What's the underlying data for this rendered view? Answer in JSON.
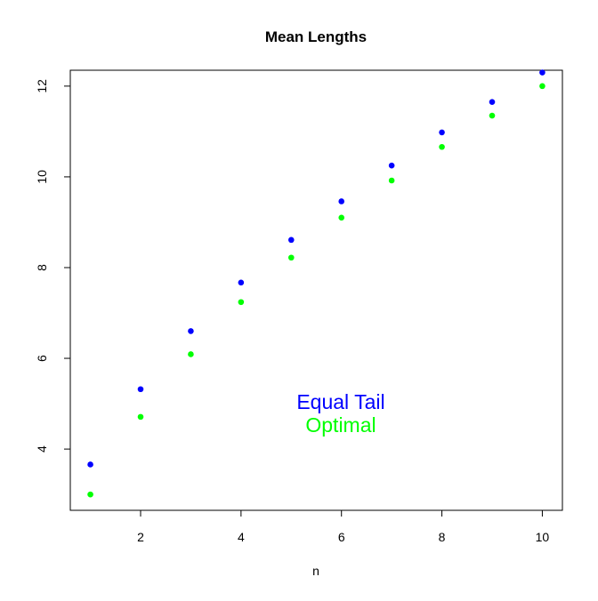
{
  "chart_data": {
    "type": "scatter",
    "title": "Mean Lengths",
    "xlabel": "n",
    "ylabel": "",
    "xlim": [
      0.6,
      10.4
    ],
    "ylim": [
      2.65,
      12.35
    ],
    "x_ticks": [
      2,
      4,
      6,
      8,
      10
    ],
    "y_ticks": [
      4,
      6,
      8,
      10,
      12
    ],
    "grid": false,
    "legend_placement": "lower-center-right (text labels inside plot)",
    "series": [
      {
        "name": "Equal Tail",
        "color": "#0000ff",
        "x": [
          1,
          2,
          3,
          4,
          5,
          6,
          7,
          8,
          9,
          10
        ],
        "y": [
          3.66,
          5.32,
          6.6,
          7.67,
          8.61,
          9.46,
          10.25,
          10.98,
          11.65,
          12.3
        ]
      },
      {
        "name": "Optimal",
        "color": "#00ff00",
        "x": [
          1,
          2,
          3,
          4,
          5,
          6,
          7,
          8,
          9,
          10
        ],
        "y": [
          3.0,
          4.71,
          6.09,
          7.24,
          8.22,
          9.1,
          9.92,
          10.66,
          11.35,
          12.0
        ]
      }
    ],
    "annotations": [
      {
        "text": "Equal Tail",
        "color": "#0000ff"
      },
      {
        "text": "Optimal",
        "color": "#00ff00"
      }
    ]
  }
}
